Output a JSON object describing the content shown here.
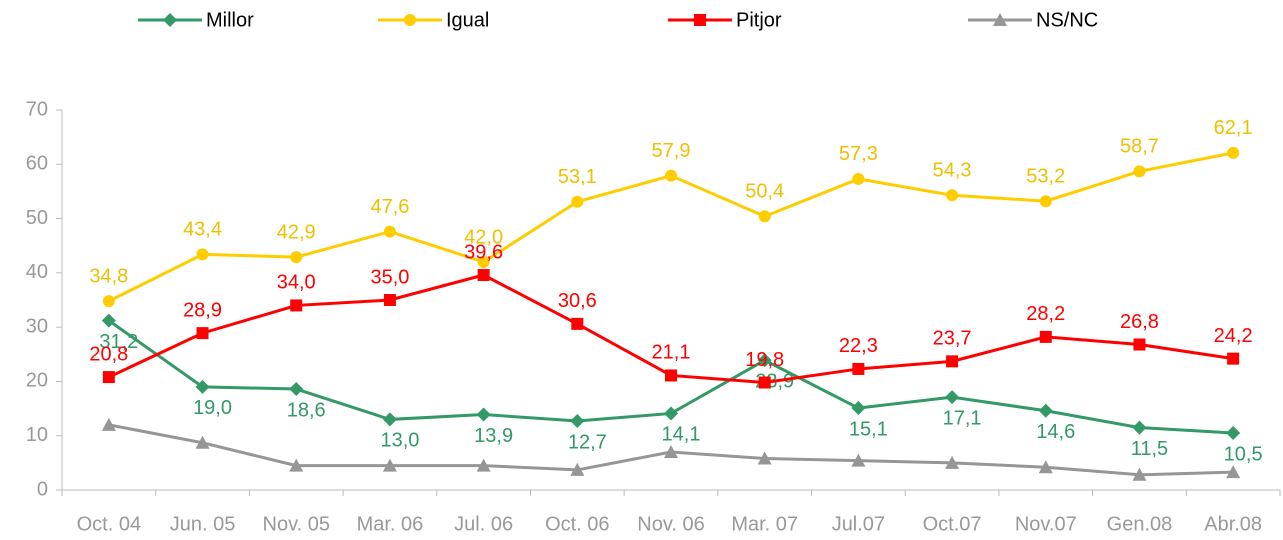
{
  "chart_data": {
    "type": "line",
    "categories": [
      "Oct. 04",
      "Jun. 05",
      "Nov. 05",
      "Mar. 06",
      "Jul. 06",
      "Oct. 06",
      "Nov. 06",
      "Mar. 07",
      "Jul.07",
      "Oct.07",
      "Nov.07",
      "Gen.08",
      "Abr.08"
    ],
    "series": [
      {
        "name": "Millor",
        "color": "#339966",
        "marker": "diamond",
        "values": [
          31.2,
          19.0,
          18.6,
          13.0,
          13.9,
          12.7,
          14.1,
          23.9,
          15.1,
          17.1,
          14.6,
          11.5,
          10.5
        ],
        "value_labels": [
          "31,2",
          "19,0",
          "18,6",
          "13,0",
          "13,9",
          "12,7",
          "14,1",
          "23,9",
          "15,1",
          "17,1",
          "14,6",
          "11,5",
          "10,5"
        ]
      },
      {
        "name": "Igual",
        "color": "#ffcc00",
        "marker": "circle",
        "values": [
          34.8,
          43.4,
          42.9,
          47.6,
          42.0,
          53.1,
          57.9,
          50.4,
          57.3,
          54.3,
          53.2,
          58.7,
          62.1
        ],
        "value_labels": [
          "34,8",
          "43,4",
          "42,9",
          "47,6",
          "42,0",
          "53,1",
          "57,9",
          "50,4",
          "57,3",
          "54,3",
          "53,2",
          "58,7",
          "62,1"
        ]
      },
      {
        "name": "Pitjor",
        "color": "#ff0000",
        "marker": "square",
        "values": [
          20.8,
          28.9,
          34.0,
          35.0,
          39.6,
          30.6,
          21.1,
          19.8,
          22.3,
          23.7,
          28.2,
          26.8,
          24.2
        ],
        "value_labels": [
          "20,8",
          "28,9",
          "34,0",
          "35,0",
          "39,6",
          "30,6",
          "21,1",
          "19,8",
          "22,3",
          "23,7",
          "28,2",
          "26,8",
          "24,2"
        ]
      },
      {
        "name": "NS/NC",
        "color": "#969696",
        "marker": "triangle",
        "values": [
          12.0,
          8.7,
          4.5,
          4.5,
          4.5,
          3.7,
          7.0,
          5.8,
          5.4,
          5.0,
          4.2,
          2.8,
          3.3
        ]
      }
    ],
    "ylim": [
      0,
      70
    ],
    "yticks": [
      0,
      10,
      20,
      30,
      40,
      50,
      60,
      70
    ]
  }
}
